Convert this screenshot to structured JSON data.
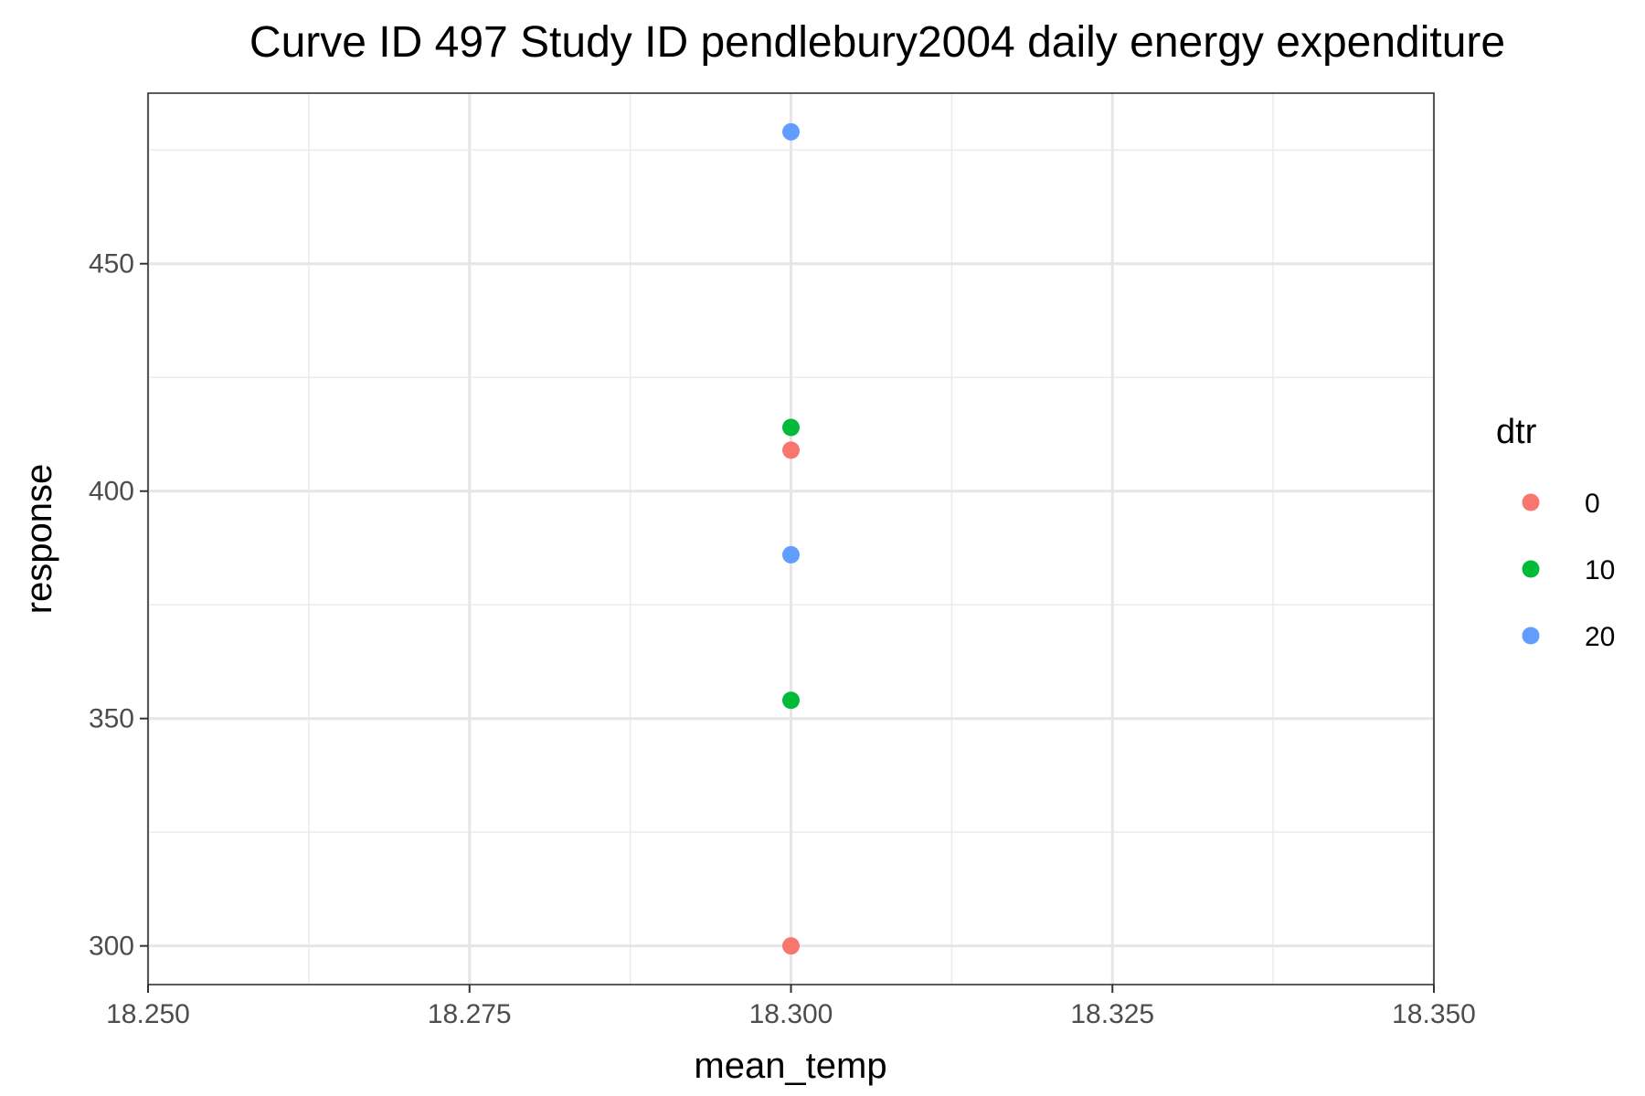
{
  "chart_data": {
    "type": "scatter",
    "title": "Curve ID 497 Study ID pendlebury2004 daily energy expenditure",
    "xlabel": "mean_temp",
    "ylabel": "response",
    "xlim": [
      18.25,
      18.35
    ],
    "ylim": [
      291.5,
      487.5
    ],
    "x_ticks": [
      18.25,
      18.275,
      18.3,
      18.325,
      18.35
    ],
    "x_tick_labels": [
      "18.250",
      "18.275",
      "18.300",
      "18.325",
      "18.350"
    ],
    "y_ticks": [
      300,
      350,
      400,
      450
    ],
    "y_tick_labels": [
      "300",
      "350",
      "400",
      "450"
    ],
    "grid": true,
    "legend": {
      "title": "dtr",
      "position": "right"
    },
    "series": [
      {
        "name": "0",
        "color": "#F8766D",
        "points": [
          {
            "x": 18.3,
            "y": 300
          },
          {
            "x": 18.3,
            "y": 409
          }
        ]
      },
      {
        "name": "10",
        "color": "#00BA38",
        "points": [
          {
            "x": 18.3,
            "y": 354
          },
          {
            "x": 18.3,
            "y": 414
          }
        ]
      },
      {
        "name": "20",
        "color": "#619CFF",
        "points": [
          {
            "x": 18.3,
            "y": 386
          },
          {
            "x": 18.3,
            "y": 479
          }
        ]
      }
    ]
  }
}
